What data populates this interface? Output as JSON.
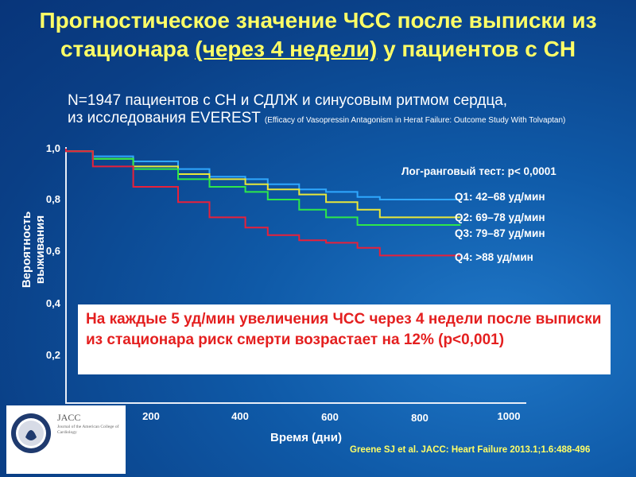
{
  "slide": {
    "title_part1": "Прогностическое значение ЧСС после выписки из стационара ",
    "title_underlined": "(через 4 недели)",
    "title_part2": " у пациентов с СН",
    "subtitle_line1": "N=1947 пациентов с СН и СДЛЖ и синусовым ритмом сердца,",
    "subtitle_line2": "из исследования EVEREST ",
    "subtitle_small": "(Efficacy of Vasopressin Antagonism in Herat Failure: Outcome Study With Tolvaptan)",
    "logrank": "Лог-ранговый тест: p< 0,0001",
    "callout": "На каждые 5 уд/мин увеличения ЧСС через 4 недели после выписки из стационара риск смерти возрастает на 12% (p<0,001)",
    "citation": "Greene SJ et al. JACC: Heart Failure 2013.1;1.6:488-496",
    "journal_logo": {
      "name": "JACC",
      "subtitle": "Journal of the American College of Cardiology"
    }
  },
  "chart_data": {
    "type": "line",
    "xlabel": "Время (дни)",
    "ylabel": "Вероятность выживания",
    "xlim": [
      0,
      1000
    ],
    "ylim": [
      0,
      1.0
    ],
    "x_ticks": [
      200,
      400,
      600,
      800,
      1000
    ],
    "y_ticks": [
      "0,2",
      "0,4",
      "0,6",
      "0,8",
      "1,0"
    ],
    "y_tick_values": [
      0.2,
      0.4,
      0.6,
      0.8,
      1.0
    ],
    "series": [
      {
        "name": "Q1: 42–68 уд/мин",
        "color": "#2fa8ff",
        "x": [
          0,
          60,
          150,
          250,
          320,
          400,
          450,
          520,
          580,
          650,
          700,
          760,
          850,
          880
        ],
        "y": [
          0.99,
          0.97,
          0.95,
          0.92,
          0.89,
          0.88,
          0.86,
          0.84,
          0.83,
          0.81,
          0.8,
          0.8,
          0.8,
          0.8
        ]
      },
      {
        "name": "Q2: 69–78 уд/мин",
        "color": "#e8e83a",
        "x": [
          0,
          60,
          150,
          250,
          320,
          400,
          450,
          520,
          580,
          650,
          700,
          760,
          850,
          880
        ],
        "y": [
          0.99,
          0.96,
          0.93,
          0.9,
          0.88,
          0.86,
          0.84,
          0.82,
          0.79,
          0.76,
          0.73,
          0.73,
          0.73,
          0.73
        ]
      },
      {
        "name": "Q3: 79–87 уд/мин",
        "color": "#2ee84a",
        "x": [
          0,
          60,
          150,
          250,
          320,
          400,
          450,
          520,
          580,
          650,
          700,
          760,
          850,
          880
        ],
        "y": [
          0.99,
          0.96,
          0.92,
          0.88,
          0.85,
          0.83,
          0.8,
          0.76,
          0.73,
          0.7,
          0.7,
          0.7,
          0.7,
          0.7
        ]
      },
      {
        "name": "Q4: >88 уд/мин",
        "color": "#e8203a",
        "x": [
          0,
          60,
          150,
          250,
          320,
          400,
          450,
          520,
          580,
          650,
          700,
          760,
          850,
          880
        ],
        "y": [
          0.99,
          0.93,
          0.85,
          0.79,
          0.73,
          0.69,
          0.66,
          0.64,
          0.63,
          0.61,
          0.58,
          0.58,
          0.58,
          0.58
        ]
      }
    ]
  }
}
